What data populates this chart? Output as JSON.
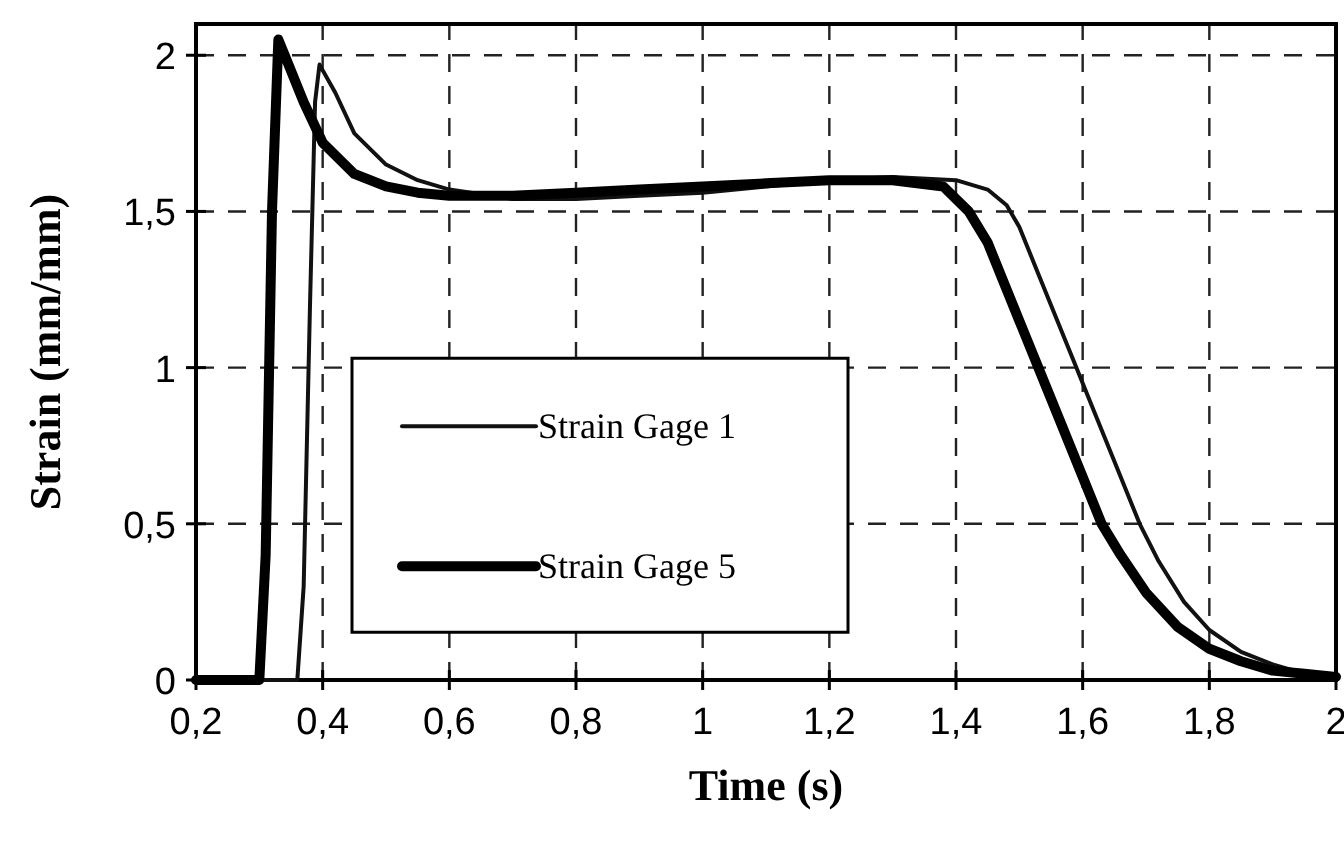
{
  "chart_data": {
    "type": "line",
    "xlabel": "Time (s)",
    "ylabel": "Strain (mm/mm)",
    "xlim": [
      0.2,
      2
    ],
    "ylim": [
      0,
      2.1
    ],
    "xticks": [
      {
        "value": 0.2,
        "label": "0,2"
      },
      {
        "value": 0.4,
        "label": "0,4"
      },
      {
        "value": 0.6,
        "label": "0,6"
      },
      {
        "value": 0.8,
        "label": "0,8"
      },
      1,
      {
        "value": 1.2,
        "label": "1,2"
      },
      {
        "value": 1.4,
        "label": "1,4"
      },
      {
        "value": 1.6,
        "label": "1,6"
      },
      {
        "value": 1.8,
        "label": "1,8"
      },
      2
    ],
    "yticks": [
      0,
      {
        "value": 0.5,
        "label": "0,5"
      },
      1,
      {
        "value": 1.5,
        "label": "1,5"
      },
      2
    ],
    "grid": true,
    "legend": "bottom",
    "line_style": "solid",
    "series": [
      {
        "name": "Strain Gage 1",
        "color": "#111111",
        "x": [
          0.2,
          0.36,
          0.37,
          0.38,
          0.388,
          0.395,
          0.42,
          0.45,
          0.5,
          0.55,
          0.6,
          0.7,
          0.8,
          0.9,
          1.0,
          1.1,
          1.2,
          1.3,
          1.4,
          1.45,
          1.48,
          1.5,
          1.53,
          1.56,
          1.59,
          1.62,
          1.65,
          1.69,
          1.72,
          1.76,
          1.8,
          1.85,
          1.9,
          1.95,
          2.0
        ],
        "values": [
          0,
          0,
          0.3,
          1.2,
          1.85,
          1.97,
          1.88,
          1.75,
          1.65,
          1.6,
          1.57,
          1.54,
          1.54,
          1.55,
          1.56,
          1.58,
          1.6,
          1.61,
          1.6,
          1.57,
          1.52,
          1.45,
          1.3,
          1.15,
          1.0,
          0.85,
          0.7,
          0.5,
          0.38,
          0.25,
          0.16,
          0.09,
          0.05,
          0.02,
          0.01
        ]
      },
      {
        "name": "Strain Gage 5",
        "color": "#000000",
        "x": [
          0.2,
          0.3,
          0.31,
          0.32,
          0.33,
          0.34,
          0.37,
          0.4,
          0.45,
          0.5,
          0.55,
          0.6,
          0.7,
          0.8,
          0.9,
          1.0,
          1.1,
          1.2,
          1.3,
          1.38,
          1.42,
          1.45,
          1.48,
          1.5,
          1.53,
          1.56,
          1.6,
          1.63,
          1.66,
          1.7,
          1.75,
          1.8,
          1.85,
          1.9,
          1.95,
          2.0
        ],
        "values": [
          0,
          0,
          0.4,
          1.5,
          2.05,
          2.0,
          1.85,
          1.72,
          1.62,
          1.58,
          1.56,
          1.55,
          1.55,
          1.56,
          1.57,
          1.58,
          1.59,
          1.6,
          1.6,
          1.58,
          1.5,
          1.4,
          1.25,
          1.15,
          1.0,
          0.85,
          0.65,
          0.5,
          0.4,
          0.28,
          0.17,
          0.1,
          0.06,
          0.03,
          0.02,
          0.01
        ]
      }
    ]
  }
}
